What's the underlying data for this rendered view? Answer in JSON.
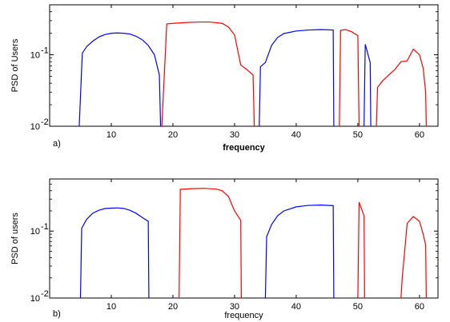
{
  "chart_data": [
    {
      "type": "line",
      "panel_label": "a)",
      "xlabel": "frequency",
      "ylabel": "PSD of Users",
      "xscale": "linear",
      "yscale": "log",
      "xlim": [
        0,
        63
      ],
      "ylim": [
        0.01,
        0.5
      ],
      "xticks": [
        10,
        20,
        30,
        40,
        50,
        60
      ],
      "yticks": [
        {
          "value": 0.01,
          "base": "10",
          "exp": "-2"
        },
        {
          "value": 0.1,
          "base": "10",
          "exp": "-1"
        }
      ],
      "grid": false,
      "series": [
        {
          "color": "#0000ff",
          "points": [
            [
              4.8,
              0.01
            ],
            [
              5.3,
              0.105
            ],
            [
              6,
              0.13
            ],
            [
              7,
              0.155
            ],
            [
              8,
              0.178
            ],
            [
              9,
              0.192
            ],
            [
              10,
              0.2
            ],
            [
              11,
              0.202
            ],
            [
              12,
              0.2
            ],
            [
              13,
              0.195
            ],
            [
              14,
              0.182
            ],
            [
              15,
              0.163
            ],
            [
              16,
              0.135
            ],
            [
              17,
              0.1
            ],
            [
              17.8,
              0.052
            ],
            [
              18,
              0.01
            ]
          ]
        },
        {
          "color": "#ff0000",
          "points": [
            [
              18.2,
              0.01
            ],
            [
              19,
              0.27
            ],
            [
              20,
              0.275
            ],
            [
              22,
              0.282
            ],
            [
              24,
              0.287
            ],
            [
              26,
              0.287
            ],
            [
              28,
              0.275
            ],
            [
              29,
              0.245
            ],
            [
              30,
              0.19
            ],
            [
              31,
              0.072
            ],
            [
              32,
              0.062
            ],
            [
              33,
              0.052
            ],
            [
              33.2,
              0.01
            ]
          ]
        },
        {
          "color": "#0000ff",
          "points": [
            [
              34,
              0.01
            ],
            [
              34.2,
              0.068
            ],
            [
              35,
              0.078
            ],
            [
              36,
              0.135
            ],
            [
              37,
              0.175
            ],
            [
              38,
              0.198
            ],
            [
              40,
              0.215
            ],
            [
              42,
              0.222
            ],
            [
              44,
              0.225
            ],
            [
              46,
              0.222
            ],
            [
              46.1,
              0.01
            ]
          ]
        },
        {
          "color": "#ff0000",
          "points": [
            [
              47,
              0.01
            ],
            [
              47.2,
              0.22
            ],
            [
              48,
              0.225
            ],
            [
              49,
              0.21
            ],
            [
              50,
              0.185
            ],
            [
              50.2,
              0.01
            ]
          ]
        },
        {
          "color": "#0000ff",
          "points": [
            [
              51,
              0.01
            ],
            [
              51.2,
              0.14
            ],
            [
              52,
              0.078
            ],
            [
              52.1,
              0.01
            ]
          ]
        },
        {
          "color": "#ff0000",
          "points": [
            [
              53,
              0.01
            ],
            [
              53.2,
              0.035
            ],
            [
              54,
              0.043
            ],
            [
              55,
              0.052
            ],
            [
              56,
              0.062
            ],
            [
              57,
              0.08
            ],
            [
              58,
              0.082
            ],
            [
              59,
              0.12
            ],
            [
              60,
              0.1
            ],
            [
              60.6,
              0.065
            ],
            [
              61,
              0.03
            ],
            [
              61.1,
              0.01
            ]
          ]
        }
      ]
    },
    {
      "type": "line",
      "panel_label": "b)",
      "xlabel": "frequency",
      "ylabel": "PSD of users",
      "xscale": "linear",
      "yscale": "log",
      "xlim": [
        0,
        63
      ],
      "ylim": [
        0.01,
        0.6
      ],
      "xticks": [
        10,
        20,
        30,
        40,
        50,
        60
      ],
      "yticks": [
        {
          "value": 0.01,
          "base": "10",
          "exp": "-2"
        },
        {
          "value": 0.1,
          "base": "10",
          "exp": "-1"
        }
      ],
      "grid": false,
      "series": [
        {
          "color": "#0000ff",
          "points": [
            [
              5,
              0.01
            ],
            [
              5.2,
              0.11
            ],
            [
              6,
              0.15
            ],
            [
              7,
              0.185
            ],
            [
              8,
              0.205
            ],
            [
              9,
              0.217
            ],
            [
              10,
              0.22
            ],
            [
              11,
              0.222
            ],
            [
              12,
              0.218
            ],
            [
              13,
              0.205
            ],
            [
              14,
              0.185
            ],
            [
              15,
              0.16
            ],
            [
              16,
              0.14
            ],
            [
              16.1,
              0.01
            ]
          ]
        },
        {
          "color": "#ff0000",
          "points": [
            [
              21,
              0.01
            ],
            [
              21.2,
              0.42
            ],
            [
              23,
              0.43
            ],
            [
              25,
              0.435
            ],
            [
              27,
              0.425
            ],
            [
              28,
              0.4
            ],
            [
              29,
              0.33
            ],
            [
              30,
              0.2
            ],
            [
              31,
              0.145
            ],
            [
              31.1,
              0.01
            ]
          ]
        },
        {
          "color": "#0000ff",
          "points": [
            [
              35,
              0.01
            ],
            [
              35.2,
              0.082
            ],
            [
              36,
              0.125
            ],
            [
              37,
              0.17
            ],
            [
              38,
              0.2
            ],
            [
              40,
              0.23
            ],
            [
              42,
              0.242
            ],
            [
              44,
              0.245
            ],
            [
              46,
              0.24
            ],
            [
              46.1,
              0.01
            ]
          ]
        },
        {
          "color": "#ff0000",
          "points": [
            [
              50,
              0.01
            ],
            [
              50.2,
              0.27
            ],
            [
              51,
              0.17
            ],
            [
              51.1,
              0.01
            ]
          ]
        },
        {
          "color": "#ff0000",
          "points": [
            [
              57,
              0.01
            ],
            [
              57.2,
              0.02
            ],
            [
              58,
              0.13
            ],
            [
              59,
              0.165
            ],
            [
              60,
              0.14
            ],
            [
              60.6,
              0.09
            ],
            [
              61,
              0.062
            ],
            [
              61.1,
              0.01
            ]
          ]
        }
      ]
    }
  ]
}
